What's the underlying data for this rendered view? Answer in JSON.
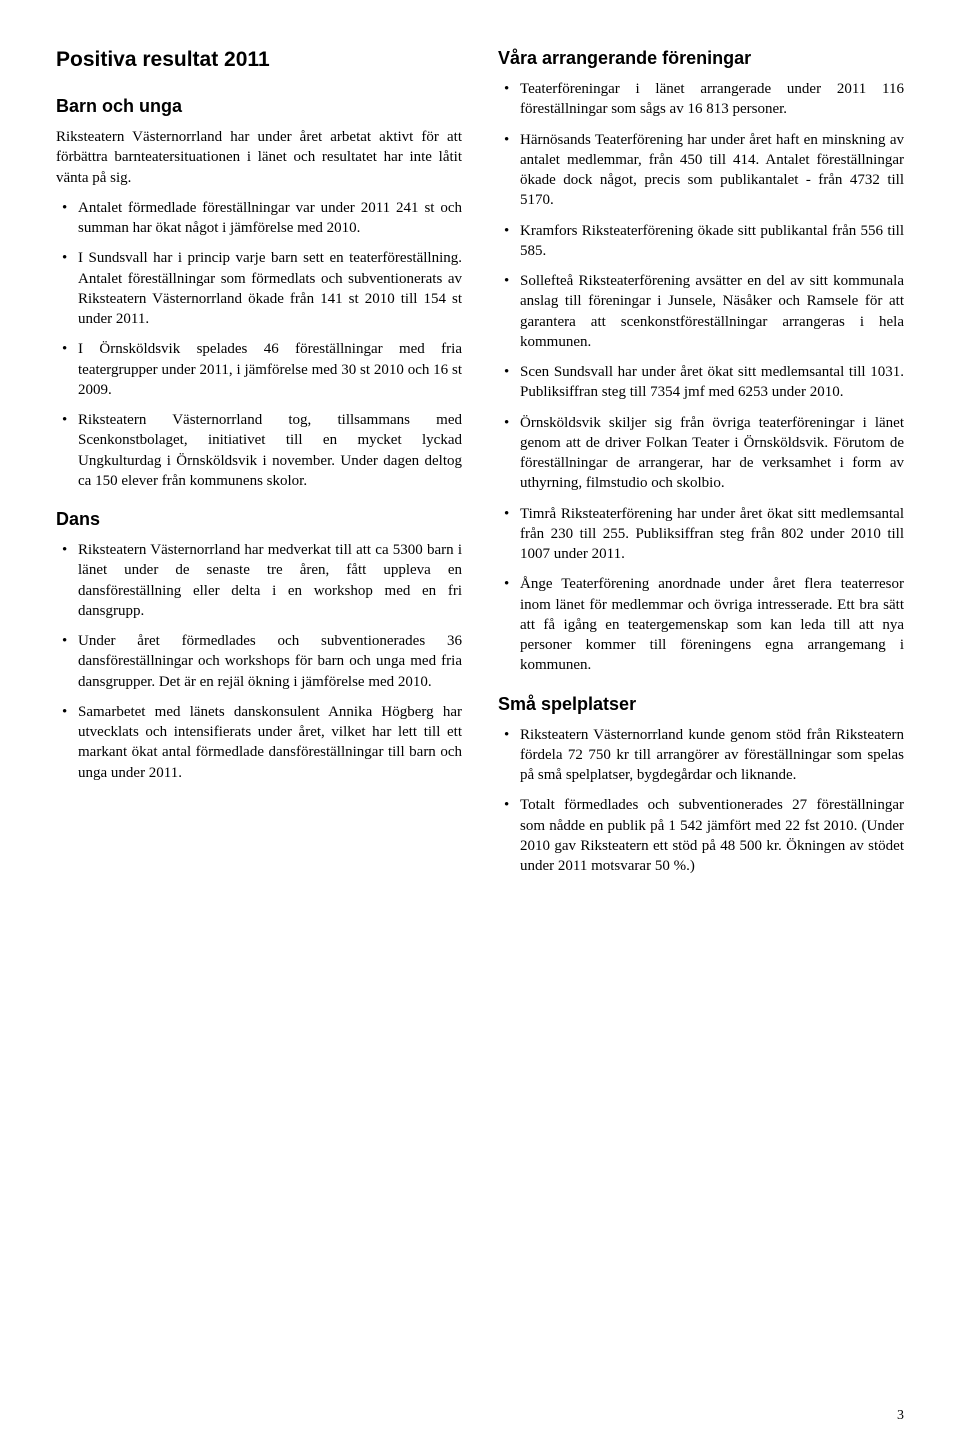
{
  "left": {
    "title": "Positiva resultat 2011",
    "section1": {
      "heading": "Barn och unga",
      "intro": "Riksteatern Västernorrland har under året arbetat aktivt för att förbättra barnteatersituationen i länet och resultatet har inte låtit vänta på sig.",
      "items": [
        "Antalet förmedlade föreställningar var under 2011 241 st och summan har ökat något i jämförelse med 2010.",
        "I Sundsvall har i princip varje barn sett en teaterföreställning. Antalet föreställningar som förmedlats och subventionerats av Riksteatern Västernorrland ökade från 141 st 2010 till 154 st under 2011.",
        "I Örnsköldsvik spelades 46 föreställningar med fria teatergrupper under 2011, i jämförelse med 30 st 2010 och 16 st 2009.",
        "Riksteatern Västernorrland tog, tillsammans med Scenkonstbolaget, initiativet till en mycket lyckad Ungkulturdag i Örnsköldsvik i november. Under dagen deltog ca 150 elever från kommunens skolor."
      ]
    },
    "section2": {
      "heading": "Dans",
      "items": [
        "Riksteatern Västernorrland har medverkat till att ca 5300 barn i länet under de senaste tre åren, fått uppleva en dansföreställning eller delta i en workshop med en fri dansgrupp.",
        "Under året förmedlades och subventionerades 36 dansföreställningar och workshops för barn och unga med fria dansgrupper. Det är en rejäl ökning i jämförelse med 2010.",
        "Samarbetet med länets danskonsulent Annika Högberg har utvecklats och intensifierats under året, vilket har lett till ett markant ökat antal förmedlade dansföreställningar till barn och unga under 2011."
      ]
    }
  },
  "right": {
    "section1": {
      "heading": "Våra arrangerande föreningar",
      "items": [
        "Teaterföreningar i länet arrangerade under 2011 116 föreställningar som sågs av 16 813 personer.",
        "Härnösands Teaterförening har under året haft en minskning av antalet medlemmar, från 450 till 414. Antalet föreställningar ökade dock något, precis som publikantalet - från 4732 till 5170.",
        "Kramfors Riksteaterförening ökade sitt publikantal från 556 till 585.",
        "Sollefteå Riksteaterförening avsätter en del av sitt kommunala anslag till föreningar i Junsele, Näsåker och Ramsele för att garantera att scenkonstföreställningar arrangeras i hela kommunen.",
        "Scen Sundsvall har under året ökat sitt medlemsantal till 1031. Publiksiffran steg till 7354 jmf med 6253 under 2010.",
        "Örnsköldsvik skiljer sig från övriga teaterföreningar i länet genom att de driver Folkan Teater i Örnsköldsvik. Förutom de föreställningar de arrangerar, har de verksamhet i form av uthyrning, filmstudio och skolbio.",
        "Timrå Riksteaterförening har under året ökat sitt medlemsantal från 230 till 255. Publiksiffran steg från 802 under 2010 till 1007 under 2011.",
        "Ånge Teaterförening anordnade under året flera teaterresor inom länet för medlemmar och övriga intresserade. Ett bra sätt att få igång en teatergemenskap som kan leda till att nya personer kommer till föreningens egna arrangemang i kommunen."
      ]
    },
    "section2": {
      "heading": "Små spelplatser",
      "items": [
        "Riksteatern Västernorrland kunde genom stöd från Riksteatern fördela 72 750 kr till arrangörer av föreställningar som spelas på små spelplatser, bygdegårdar och liknande.",
        "Totalt förmedlades och subventionerades 27 föreställningar som nådde en publik på 1 542 jämfört med 22 fst 2010. (Under 2010 gav Riksteatern ett stöd på 48 500 kr. Ökningen av stödet under 2011 motsvarar 50 %.)"
      ]
    }
  },
  "pageNumber": "3"
}
